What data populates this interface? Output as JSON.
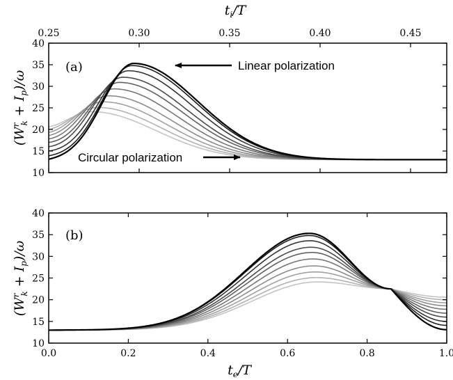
{
  "chart_data": [
    {
      "type": "line",
      "panel_label": "(a)",
      "ylabel": "(W_k^r + I_p)/ω",
      "ylim": [
        10,
        40
      ],
      "yticks": [
        "10",
        "15",
        "20",
        "25",
        "30",
        "35",
        "40"
      ],
      "xlabel": "t_i/T",
      "xlim": [
        0.25,
        0.47
      ],
      "xticks": [
        "0.25",
        "0.30",
        "0.35",
        "0.40",
        "0.45"
      ],
      "xaxis_position": "top",
      "annotations": [
        {
          "text": "Linear polarization",
          "points_to": "darkest curve peak"
        },
        {
          "text": "Circular polarization",
          "points_to": "lightest curve tail"
        }
      ],
      "series_colors": [
        "#000000",
        "#1c1c1c",
        "#333333",
        "#4a4a4a",
        "#606060",
        "#767676",
        "#8c8c8c",
        "#a0a0a0",
        "#b2b2b2",
        "#c4c4c4"
      ],
      "series": [
        {
          "peak": 35.3,
          "x0": 0.297,
          "start": 13.1
        },
        {
          "peak": 34.8,
          "x0": 0.296,
          "start": 13.9
        },
        {
          "peak": 33.6,
          "x0": 0.294,
          "start": 15.0
        },
        {
          "peak": 32.1,
          "x0": 0.291,
          "start": 16.0
        },
        {
          "peak": 30.9,
          "x0": 0.289,
          "start": 17.0
        },
        {
          "peak": 29.4,
          "x0": 0.286,
          "start": 17.8
        },
        {
          "peak": 27.8,
          "x0": 0.283,
          "start": 18.6
        },
        {
          "peak": 26.4,
          "x0": 0.28,
          "start": 19.3
        },
        {
          "peak": 25.1,
          "x0": 0.277,
          "start": 20.0
        },
        {
          "peak": 24.1,
          "x0": 0.274,
          "start": 20.6
        }
      ]
    },
    {
      "type": "line",
      "panel_label": "(b)",
      "ylabel": "(W_k^r + I_p)/ω",
      "ylim": [
        10,
        40
      ],
      "yticks": [
        "10",
        "15",
        "20",
        "25",
        "30",
        "35",
        "40"
      ],
      "xlabel": "t_e/T",
      "xlim": [
        0.0,
        1.0
      ],
      "xticks": [
        "0.0",
        "0.2",
        "0.4",
        "0.6",
        "0.8",
        "1.0"
      ],
      "series_colors": [
        "#000000",
        "#1c1c1c",
        "#333333",
        "#4a4a4a",
        "#606060",
        "#767676",
        "#8c8c8c",
        "#a0a0a0",
        "#b2b2b2",
        "#c4c4c4"
      ],
      "series": [
        {
          "peak": 35.3,
          "x0": 0.655,
          "end": 13.1
        },
        {
          "peak": 34.8,
          "x0": 0.655,
          "end": 14.1
        },
        {
          "peak": 33.6,
          "x0": 0.657,
          "end": 15.0
        },
        {
          "peak": 32.1,
          "x0": 0.66,
          "end": 16.0
        },
        {
          "peak": 30.9,
          "x0": 0.662,
          "end": 16.9
        },
        {
          "peak": 29.4,
          "x0": 0.665,
          "end": 17.8
        },
        {
          "peak": 27.8,
          "x0": 0.667,
          "end": 18.6
        },
        {
          "peak": 26.4,
          "x0": 0.67,
          "end": 19.3
        },
        {
          "peak": 25.1,
          "x0": 0.672,
          "end": 20.0
        },
        {
          "peak": 24.1,
          "x0": 0.675,
          "end": 20.6
        }
      ]
    }
  ]
}
